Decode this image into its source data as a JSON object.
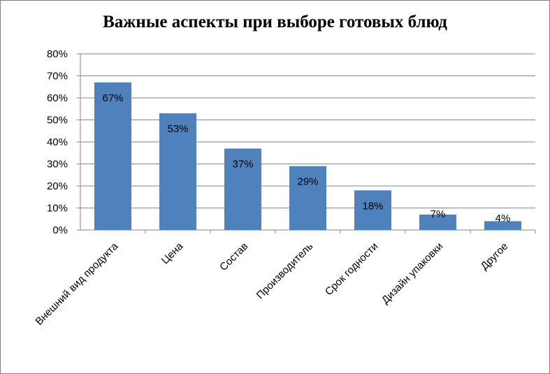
{
  "chart_data": {
    "type": "bar",
    "title": "Важные аспекты при выборе готовых блюд",
    "categories": [
      "Внешний вид продукта",
      "Цена",
      "Состав",
      "Производитель",
      "Срок годности",
      "Дизайн упаковки",
      "Другое"
    ],
    "values": [
      67,
      53,
      37,
      29,
      18,
      7,
      4
    ],
    "data_labels": [
      "67%",
      "53%",
      "37%",
      "29%",
      "18%",
      "7%",
      "4%"
    ],
    "y_ticks": [
      "0%",
      "10%",
      "20%",
      "30%",
      "40%",
      "50%",
      "60%",
      "70%",
      "80%"
    ],
    "ylim": [
      0,
      80
    ],
    "grid": true,
    "legend": "none",
    "bar_color": "#4f81bd",
    "grid_color": "#868686"
  }
}
